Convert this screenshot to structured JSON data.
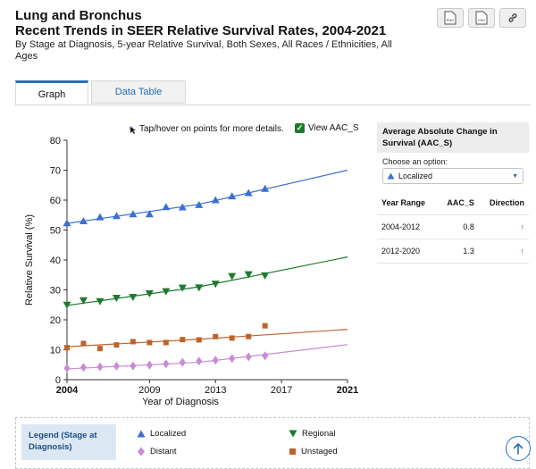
{
  "title_line1": "Lung and Bronchus",
  "title_line2": "Recent Trends in SEER Relative Survival Rates, 2004-2021",
  "subtitle": "By Stage at Diagnosis, 5-year Relative Survival, Both Sexes, All Races / Ethnicities, All Ages",
  "downloads": [
    {
      "label": "PNG",
      "icon": "image-file-icon"
    },
    {
      "label": "CSV",
      "icon": "csv-file-icon"
    },
    {
      "label": "",
      "icon": "link-icon"
    }
  ],
  "tabs": [
    {
      "label": "Graph",
      "active": true
    },
    {
      "label": "Data Table",
      "active": false
    }
  ],
  "hint_text": "Tap/hover on points for more details.",
  "aac_toggle": {
    "label": "View AAC_S",
    "checked": true
  },
  "panel": {
    "title": "Average Absolute Change in Survival (AAC_S)",
    "choose_label": "Choose an option:",
    "selected": "Localized",
    "headers": [
      "Year Range",
      "AAC_S",
      "Direction"
    ],
    "rows": [
      {
        "range": "2004-2012",
        "value": "0.8",
        "direction": "↑"
      },
      {
        "range": "2012-2020",
        "value": "1.3",
        "direction": "↑"
      }
    ]
  },
  "legend": {
    "title": "Legend (Stage at Diagnosis)",
    "items": [
      {
        "label": "Localized",
        "color": "#3b6fd4",
        "marker": "triangle-up"
      },
      {
        "label": "Regional",
        "color": "#1d7a2c",
        "marker": "triangle-down"
      },
      {
        "label": "Distant",
        "color": "#c98ad6",
        "marker": "diamond"
      },
      {
        "label": "Unstaged",
        "color": "#c0622a",
        "marker": "square"
      }
    ]
  },
  "chart_data": {
    "type": "scatter",
    "xlabel": "Year of Diagnosis",
    "ylabel": "Relative Survival (%)",
    "xlim": [
      2004,
      2021
    ],
    "ylim": [
      0,
      80
    ],
    "x_ticks": [
      2004,
      2009,
      2013,
      2017,
      2021
    ],
    "y_ticks": [
      0,
      10,
      20,
      30,
      40,
      50,
      60,
      70,
      80
    ],
    "grid": false,
    "series": [
      {
        "name": "Localized",
        "color": "#3b6fd4",
        "marker": "triangle-up",
        "x": [
          2004,
          2005,
          2006,
          2007,
          2008,
          2009,
          2010,
          2011,
          2012,
          2013,
          2014,
          2015,
          2016
        ],
        "values": [
          52.3,
          53.0,
          54.3,
          54.7,
          55.3,
          55.3,
          57.7,
          57.6,
          58.4,
          60.0,
          61.3,
          62.4,
          63.8
        ],
        "trend": [
          [
            2004,
            52.2
          ],
          [
            2012,
            58.6
          ],
          [
            2021,
            70.0
          ]
        ]
      },
      {
        "name": "Regional",
        "color": "#1d7a2c",
        "marker": "triangle-down",
        "x": [
          2004,
          2005,
          2006,
          2007,
          2008,
          2009,
          2010,
          2011,
          2012,
          2013,
          2014,
          2015,
          2016
        ],
        "values": [
          25.0,
          26.5,
          26.2,
          27.3,
          27.6,
          28.8,
          29.5,
          30.7,
          30.8,
          32.0,
          34.6,
          35.2,
          34.8
        ],
        "trend": [
          [
            2004,
            24.8
          ],
          [
            2012,
            31.0
          ],
          [
            2021,
            41.0
          ]
        ]
      },
      {
        "name": "Distant",
        "color": "#c98ad6",
        "marker": "diamond",
        "x": [
          2004,
          2005,
          2006,
          2007,
          2008,
          2009,
          2010,
          2011,
          2012,
          2013,
          2014,
          2015,
          2016
        ],
        "values": [
          3.8,
          4.1,
          4.3,
          4.5,
          4.6,
          4.9,
          5.3,
          5.8,
          6.2,
          6.5,
          7.1,
          7.6,
          8.0
        ],
        "trend": [
          [
            2004,
            3.6
          ],
          [
            2012,
            5.8
          ],
          [
            2021,
            11.7
          ]
        ]
      },
      {
        "name": "Unstaged",
        "color": "#c0622a",
        "marker": "square",
        "x": [
          2004,
          2005,
          2006,
          2007,
          2008,
          2009,
          2010,
          2011,
          2012,
          2013,
          2014,
          2015,
          2016
        ],
        "values": [
          10.7,
          12.1,
          10.4,
          11.6,
          12.7,
          12.4,
          12.4,
          13.4,
          13.3,
          14.4,
          13.9,
          14.4,
          18.0
        ],
        "trend": [
          [
            2004,
            11.0
          ],
          [
            2012,
            13.5
          ],
          [
            2021,
            16.8
          ]
        ]
      }
    ]
  }
}
